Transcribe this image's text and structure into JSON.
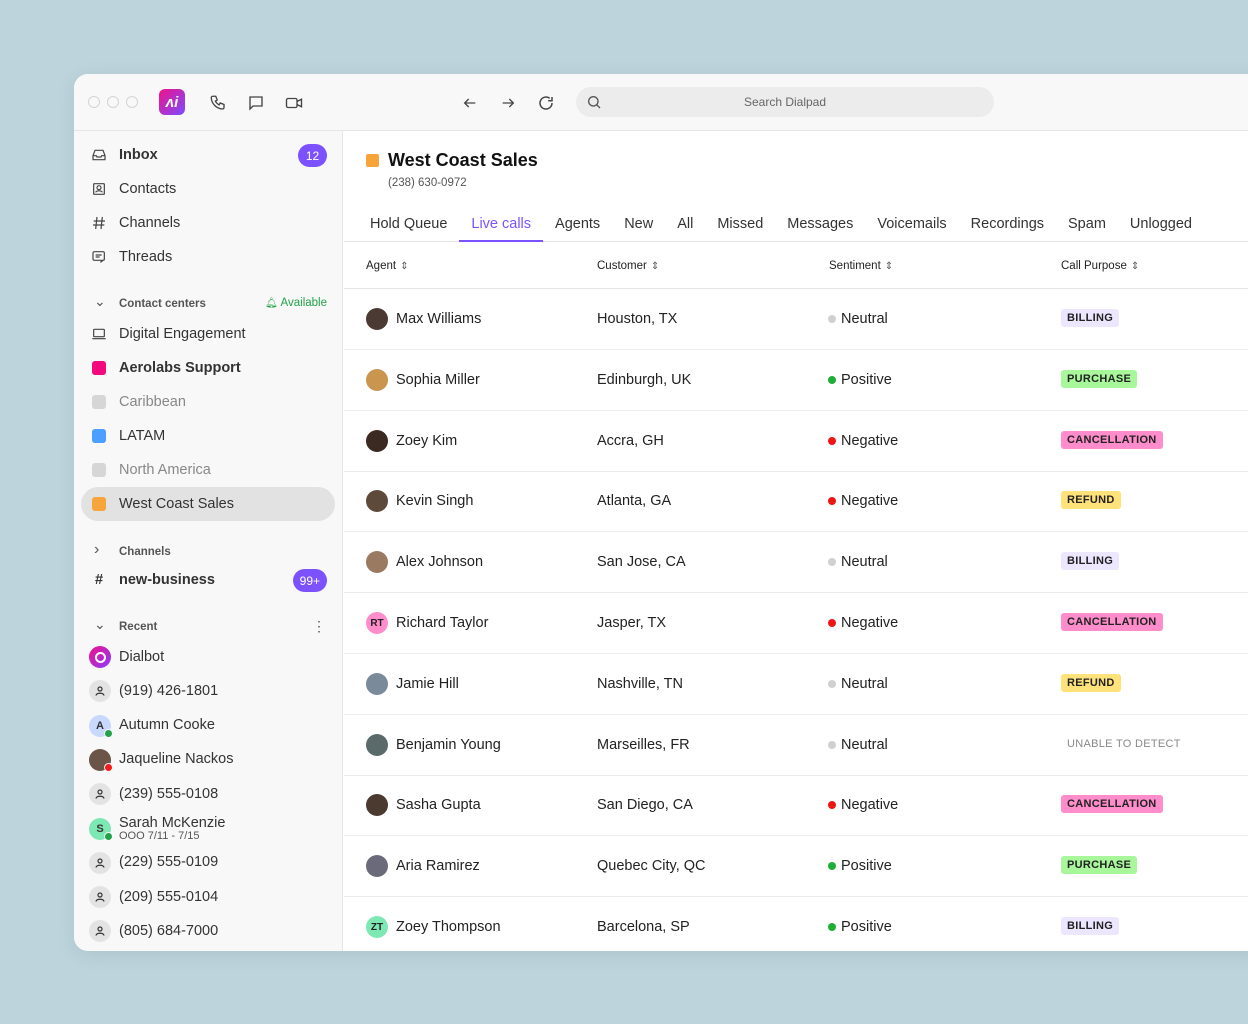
{
  "titlebar": {
    "search_placeholder": "Search Dialpad",
    "logo": "Ai"
  },
  "sidebar": {
    "nav": [
      {
        "label": "Inbox",
        "icon": "inbox-icon",
        "badge": "12",
        "bold": true
      },
      {
        "label": "Contacts",
        "icon": "contacts-icon"
      },
      {
        "label": "Channels",
        "icon": "hash-icon"
      },
      {
        "label": "Threads",
        "icon": "threads-icon"
      }
    ],
    "contact_centers": {
      "label": "Contact centers",
      "status": "Available",
      "items": [
        {
          "label": "Digital Engagement",
          "color": "",
          "icon": "laptop-icon"
        },
        {
          "label": "Aerolabs Support",
          "color": "#f5087d",
          "bold": true
        },
        {
          "label": "Caribbean",
          "color": "#d6d6d6",
          "muted": true
        },
        {
          "label": "LATAM",
          "color": "#4d9fff"
        },
        {
          "label": "North America",
          "color": "#d6d6d6",
          "muted": true
        },
        {
          "label": "West Coast Sales",
          "color": "#f7a53a",
          "selected": true
        }
      ]
    },
    "channels": {
      "label": "Channels",
      "items": [
        {
          "label": "new-business",
          "badge": "99+"
        }
      ]
    },
    "recent": {
      "label": "Recent",
      "items": [
        {
          "label": "Dialbot",
          "type": "bot"
        },
        {
          "label": "(919) 426-1801",
          "type": "person"
        },
        {
          "label": "Autumn Cooke",
          "initial": "A",
          "bg": "#c9d8ff",
          "status": "#22a34a"
        },
        {
          "label": "Jaqueline Nackos",
          "type": "photo",
          "bg": "#6b5448",
          "status": "#f21a1a"
        },
        {
          "label": "(239) 555-0108",
          "type": "person"
        },
        {
          "label": "Sarah McKenzie",
          "sub": "OOO 7/11 - 7/15",
          "initial": "S",
          "bg": "#7de8b4",
          "status": "#22a34a"
        },
        {
          "label": "(229) 555-0109",
          "type": "person"
        },
        {
          "label": "(209) 555-0104",
          "type": "person"
        },
        {
          "label": "(805) 684-7000",
          "type": "person"
        }
      ]
    }
  },
  "header": {
    "title": "West Coast Sales",
    "phone": "(238) 630-0972",
    "color": "#f7a53a"
  },
  "tabs": [
    "Hold Queue",
    "Live calls",
    "Agents",
    "New",
    "All",
    "Missed",
    "Messages",
    "Voicemails",
    "Recordings",
    "Spam",
    "Unlogged"
  ],
  "active_tab": "Live calls",
  "columns": [
    "Agent",
    "Customer",
    "Sentiment",
    "Call Purpose"
  ],
  "sentiment_colors": {
    "Neutral": "#d0d0d0",
    "Positive": "#1fae3a",
    "Negative": "#f01616"
  },
  "purpose_colors": {
    "BILLING": "#ede6ff",
    "PURCHASE": "#a8f79b",
    "CANCELLATION": "#ff8ccb",
    "REFUND": "#ffe27a",
    "UNABLE TO DETECT": ""
  },
  "rows": [
    {
      "agent": "Max Williams",
      "customer": "Houston, TX",
      "sentiment": "Neutral",
      "purpose": "BILLING",
      "av": "#4a3a33"
    },
    {
      "agent": "Sophia Miller",
      "customer": "Edinburgh, UK",
      "sentiment": "Positive",
      "purpose": "PURCHASE",
      "av": "#c9954f"
    },
    {
      "agent": "Zoey Kim",
      "customer": "Accra, GH",
      "sentiment": "Negative",
      "purpose": "CANCELLATION",
      "av": "#3a2a22"
    },
    {
      "agent": "Kevin Singh",
      "customer": "Atlanta, GA",
      "sentiment": "Negative",
      "purpose": "REFUND",
      "av": "#5e4a3a"
    },
    {
      "agent": "Alex Johnson",
      "customer": "San Jose, CA",
      "sentiment": "Neutral",
      "purpose": "BILLING",
      "av": "#9a7a60"
    },
    {
      "agent": "Richard Taylor",
      "customer": "Jasper, TX",
      "sentiment": "Negative",
      "purpose": "CANCELLATION",
      "initials": "RT",
      "av": "#ff8ccb"
    },
    {
      "agent": "Jamie Hill",
      "customer": "Nashville, TN",
      "sentiment": "Neutral",
      "purpose": "REFUND",
      "av": "#7a8a9a"
    },
    {
      "agent": "Benjamin Young",
      "customer": "Marseilles, FR",
      "sentiment": "Neutral",
      "purpose": "UNABLE TO DETECT",
      "av": "#5a6a6a"
    },
    {
      "agent": "Sasha Gupta",
      "customer": "San Diego, CA",
      "sentiment": "Negative",
      "purpose": "CANCELLATION",
      "av": "#4a3a30"
    },
    {
      "agent": "Aria Ramirez",
      "customer": "Quebec City, QC",
      "sentiment": "Positive",
      "purpose": "PURCHASE",
      "av": "#6a6a7a"
    },
    {
      "agent": "Zoey Thompson",
      "customer": "Barcelona, SP",
      "sentiment": "Positive",
      "purpose": "BILLING",
      "initials": "ZT",
      "av": "#7de8b4"
    }
  ]
}
